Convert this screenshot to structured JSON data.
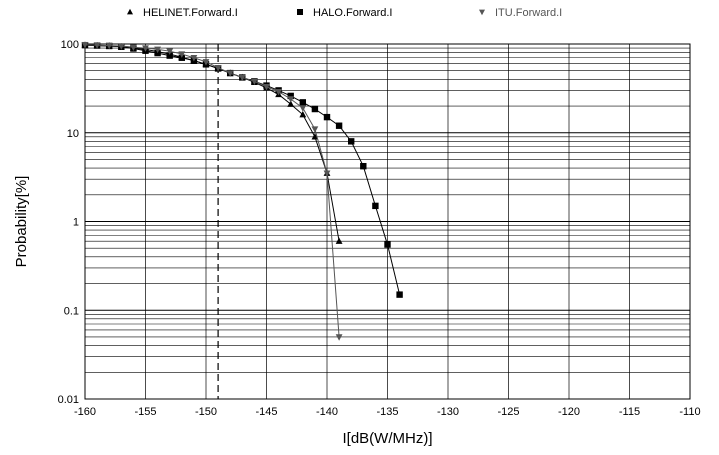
{
  "chart_data": {
    "type": "scatter",
    "xlabel": "I[dB(W/MHz)]",
    "ylabel": "Probability[%]",
    "xlim": [
      -160,
      -110
    ],
    "ylim": [
      0.01,
      100
    ],
    "yscale": "log",
    "x_ticks": [
      -160,
      -155,
      -150,
      -145,
      -140,
      -135,
      -130,
      -125,
      -120,
      -115,
      -110
    ],
    "x_tick_labels": [
      "-160",
      "-155",
      "-150",
      "-145",
      "-140",
      "-135",
      "-130",
      "-125",
      "-120",
      "-115",
      "-110"
    ],
    "y_ticks": [
      0.01,
      0.1,
      1,
      10,
      100
    ],
    "y_tick_labels": [
      "0.01",
      "0.1",
      "1",
      "10",
      "100"
    ],
    "grid": true,
    "legend_position": "top",
    "reference_lines": [
      {
        "x": -149,
        "style": "dashed",
        "color": "#000000"
      }
    ],
    "series": [
      {
        "name": "HELINET.Forward.I",
        "marker": "triangle-up",
        "color": "#000000",
        "x": [
          -160,
          -159,
          -158,
          -157,
          -156,
          -155,
          -154,
          -153,
          -152,
          -151,
          -150,
          -149,
          -148,
          -147,
          -146,
          -145,
          -144,
          -143,
          -142,
          -141,
          -140,
          -139
        ],
        "y": [
          97,
          96,
          95,
          93,
          90,
          87,
          82,
          77,
          71,
          65,
          59,
          53,
          47,
          42,
          37,
          32,
          27,
          21,
          16,
          9,
          3.5,
          0.6
        ]
      },
      {
        "name": "HALO.Forward.I",
        "marker": "square",
        "color": "#000000",
        "x": [
          -160,
          -159,
          -158,
          -157,
          -156,
          -155,
          -154,
          -153,
          -152,
          -151,
          -150,
          -149,
          -148,
          -147,
          -146,
          -145,
          -144,
          -143,
          -142,
          -141,
          -140,
          -139,
          -138,
          -137,
          -136,
          -135,
          -134
        ],
        "y": [
          97,
          96,
          95,
          93,
          89,
          84,
          79,
          74,
          70,
          65,
          59,
          53,
          47,
          42,
          38,
          34,
          30,
          26,
          22,
          18.5,
          15,
          12,
          8,
          4.2,
          1.5,
          0.55,
          0.15
        ]
      },
      {
        "name": "ITU.Forward.I",
        "marker": "triangle-down",
        "color": "#555555",
        "x": [
          -160,
          -159,
          -158,
          -157,
          -156,
          -155,
          -154,
          -153,
          -152,
          -151,
          -150,
          -149,
          -148,
          -147,
          -146,
          -145,
          -144,
          -143,
          -142,
          -141,
          -140,
          -139
        ],
        "y": [
          98,
          97,
          96,
          95,
          92,
          90,
          87,
          83,
          77,
          70,
          63,
          54,
          47,
          42,
          38,
          33,
          29,
          24,
          19,
          11,
          3.5,
          0.05
        ]
      }
    ]
  }
}
